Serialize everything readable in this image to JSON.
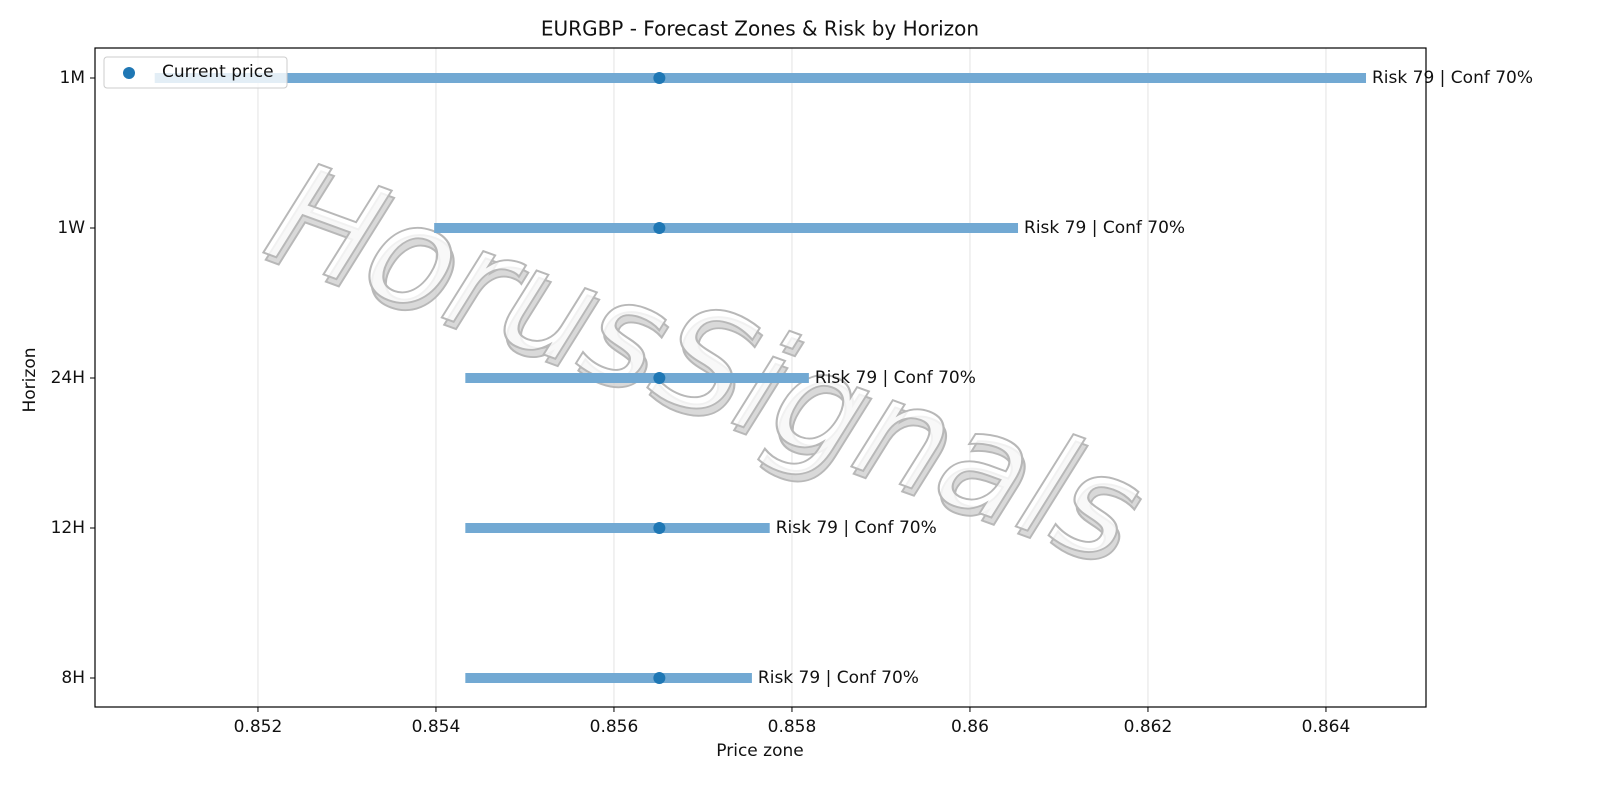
{
  "chart_data": {
    "type": "range",
    "title": "EURGBP - Forecast Zones & Risk by Horizon",
    "x_label": "Price zone",
    "y_label": "Horizon",
    "categories": [
      "8H",
      "12H",
      "24H",
      "1W",
      "1M"
    ],
    "low": [
      0.85433,
      0.85433,
      0.85433,
      0.85398,
      0.85084
    ],
    "high": [
      0.85755,
      0.85775,
      0.85819,
      0.86054,
      0.86445
    ],
    "bar_color": "#72a9d3",
    "series": [
      {
        "name": "Current price",
        "color": "#1f77b4",
        "values": [
          0.85651,
          0.85651,
          0.85651,
          0.85651,
          0.85651
        ]
      }
    ],
    "annotations": [
      "Risk 79 | Conf 70%",
      "Risk 79 | Conf 70%",
      "Risk 79 | Conf 70%",
      "Risk 79 | Conf 70%",
      "Risk 79 | Conf 70%"
    ],
    "xlim": [
      0.850169,
      0.865124
    ],
    "xticks": [
      0.852,
      0.854,
      0.856,
      0.858,
      0.86,
      0.862,
      0.864
    ],
    "xtick_labels_note_free": true,
    "grid": true,
    "legend": "upper left",
    "watermark": "HorusSignals"
  }
}
